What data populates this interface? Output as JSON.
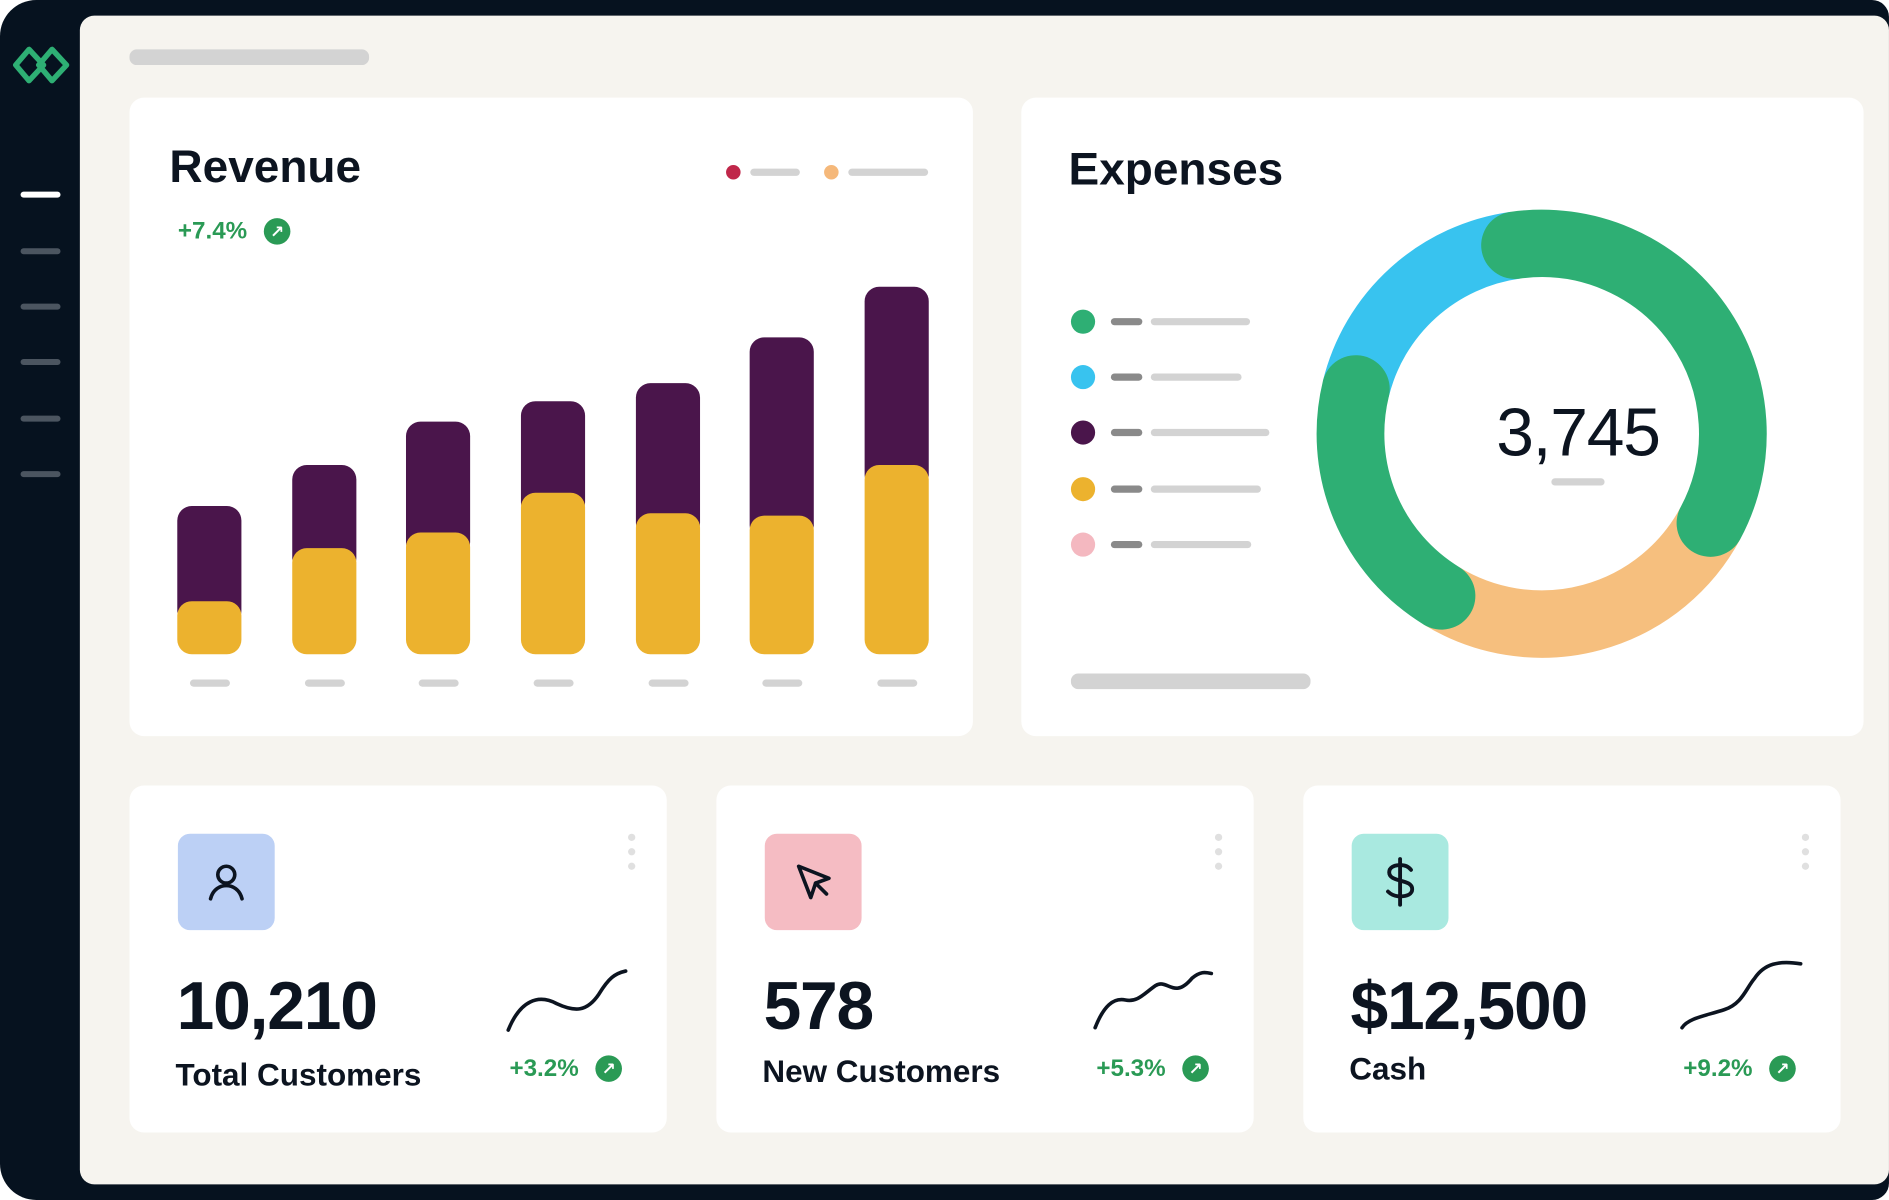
{
  "colors": {
    "frame": "#06121f",
    "panel": "#f6f4ef",
    "brand": "#2eaf74",
    "positive": "#2a9a55"
  },
  "logo": {
    "icon": "interlocking-rings-logo"
  },
  "sidebar": {
    "items": [
      {
        "icon": "nav-line",
        "active": true
      },
      {
        "icon": "nav-line"
      },
      {
        "icon": "nav-line"
      },
      {
        "icon": "nav-line"
      },
      {
        "icon": "nav-line"
      },
      {
        "icon": "nav-line"
      }
    ]
  },
  "revenue": {
    "title": "Revenue",
    "change": "+7.4%",
    "change_icon": "arrow-up-right-icon",
    "legend_colors": [
      "#c0274a",
      "#f5b87a"
    ]
  },
  "expenses": {
    "title": "Expenses",
    "total": "3,745",
    "legend_colors": [
      "#2eaf74",
      "#38c3ef",
      "#4a154b",
      "#ecb22e",
      "#f4b8c0"
    ]
  },
  "chart_data": [
    {
      "type": "bar",
      "stacked": true,
      "title": "Revenue",
      "categories": [
        "",
        "",
        "",
        "",
        "",
        "",
        ""
      ],
      "series": [
        {
          "color": "#ecb22e",
          "values": [
            44,
            88,
            101,
            134,
            117,
            115,
            157
          ]
        },
        {
          "color": "#4a154b",
          "values": [
            79,
            69,
            92,
            76,
            108,
            148,
            148
          ]
        }
      ],
      "grid": false
    },
    {
      "type": "pie",
      "donut": true,
      "title": "Expenses",
      "center_label": "3,745",
      "segments": [
        {
          "color": "#2eaf74",
          "value": 35
        },
        {
          "color": "#f6bf7e",
          "value": 26
        },
        {
          "color": "#2eaf74",
          "value": 20
        },
        {
          "color": "#38c3ef",
          "value": 19
        }
      ]
    }
  ],
  "kpis": [
    {
      "icon": "user-icon",
      "icon_bg": "#bcd0f5",
      "value": "10,210",
      "label": "Total Customers",
      "change": "+3.2%"
    },
    {
      "icon": "cursor-icon",
      "icon_bg": "#f5bcc3",
      "value": "578",
      "label": "New Customers",
      "change": "+5.3%"
    },
    {
      "icon": "dollar-icon",
      "icon_bg": "#a9e9e0",
      "value": "$12,500",
      "label": "Cash",
      "change": "+9.2%"
    }
  ]
}
